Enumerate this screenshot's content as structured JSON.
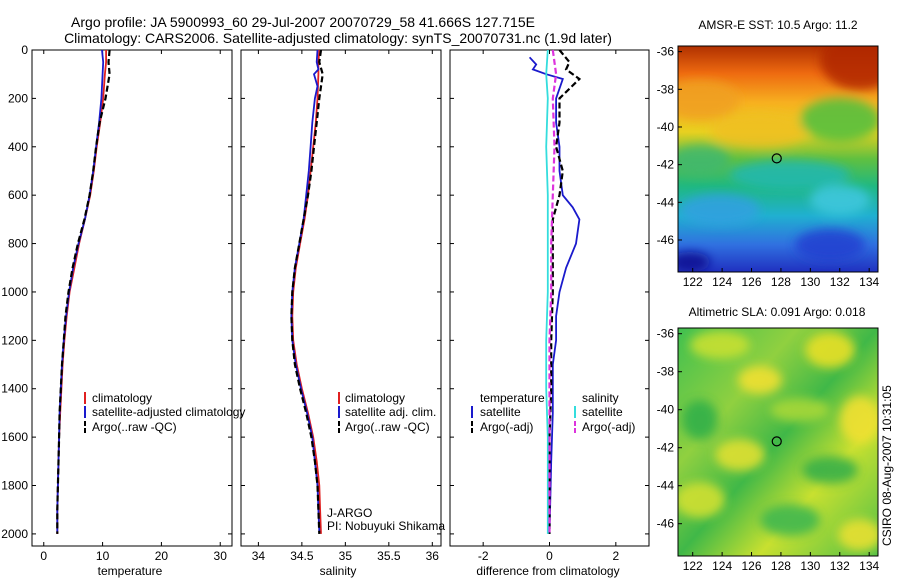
{
  "title_line1": "Argo profile: JA 5900993_60 29-Jul-2007 20070729_58 41.666S 127.715E",
  "title_line2": "Climatology: CARS2006. Satellite-adjusted climatology: synTS_20070731.nc (1.9d later)",
  "side_credit": "CSIRO 08-Aug-2007 10:31:05",
  "colors": {
    "red": "#e02020",
    "blue": "#1a1acc",
    "black": "#000000",
    "cyan": "#33dddd",
    "magenta": "#dd33dd"
  },
  "chart_data": [
    {
      "id": "temperature",
      "type": "line",
      "xlabel": "temperature",
      "xlim": [
        -2,
        32
      ],
      "ylim": [
        0,
        2050
      ],
      "xticks": [
        0,
        10,
        20,
        30
      ],
      "yticks": [
        0,
        200,
        400,
        600,
        800,
        1000,
        1200,
        1400,
        1600,
        1800,
        2000
      ],
      "legend": [
        "climatology",
        "satellite-adjusted climatology",
        "Argo(..raw -QC)"
      ],
      "series": [
        {
          "name": "climatology",
          "color": "red",
          "dash": false,
          "points": [
            [
              10.6,
              0
            ],
            [
              10.6,
              50
            ],
            [
              10.4,
              100
            ],
            [
              10.1,
              200
            ],
            [
              9.6,
              300
            ],
            [
              9.0,
              400
            ],
            [
              8.5,
              500
            ],
            [
              7.9,
              600
            ],
            [
              7.0,
              700
            ],
            [
              6.0,
              800
            ],
            [
              5.2,
              900
            ],
            [
              4.4,
              1000
            ],
            [
              3.9,
              1100
            ],
            [
              3.5,
              1200
            ],
            [
              3.2,
              1300
            ],
            [
              3.0,
              1400
            ],
            [
              2.8,
              1500
            ],
            [
              2.6,
              1600
            ],
            [
              2.5,
              1700
            ],
            [
              2.4,
              1800
            ],
            [
              2.3,
              1900
            ],
            [
              2.3,
              2000
            ]
          ]
        },
        {
          "name": "satellite-adjusted climatology",
          "color": "blue",
          "dash": false,
          "points": [
            [
              9.9,
              0
            ],
            [
              10.1,
              50
            ],
            [
              10.0,
              100
            ],
            [
              9.8,
              200
            ],
            [
              9.4,
              300
            ],
            [
              8.9,
              400
            ],
            [
              8.4,
              500
            ],
            [
              7.8,
              600
            ],
            [
              7.0,
              700
            ],
            [
              5.9,
              800
            ],
            [
              5.0,
              900
            ],
            [
              4.3,
              1000
            ],
            [
              3.8,
              1100
            ],
            [
              3.4,
              1200
            ],
            [
              3.1,
              1300
            ],
            [
              2.9,
              1400
            ],
            [
              2.7,
              1500
            ],
            [
              2.6,
              1600
            ],
            [
              2.5,
              1700
            ],
            [
              2.4,
              1800
            ],
            [
              2.3,
              1900
            ],
            [
              2.3,
              1990
            ]
          ]
        },
        {
          "name": "Argo(..raw -QC)",
          "color": "black",
          "dash": true,
          "points": [
            [
              11.2,
              0
            ],
            [
              11.0,
              50
            ],
            [
              11.2,
              100
            ],
            [
              10.5,
              200
            ],
            [
              9.5,
              300
            ],
            [
              8.9,
              400
            ],
            [
              8.4,
              500
            ],
            [
              7.8,
              600
            ],
            [
              6.9,
              700
            ],
            [
              5.8,
              800
            ],
            [
              4.9,
              900
            ],
            [
              4.2,
              1000
            ],
            [
              3.7,
              1100
            ],
            [
              3.4,
              1200
            ],
            [
              3.1,
              1300
            ],
            [
              2.9,
              1400
            ],
            [
              2.7,
              1500
            ],
            [
              2.6,
              1600
            ],
            [
              2.5,
              1700
            ],
            [
              2.4,
              1800
            ],
            [
              2.3,
              1900
            ],
            [
              2.3,
              2000
            ]
          ]
        }
      ]
    },
    {
      "id": "salinity",
      "type": "line",
      "xlabel": "salinity",
      "xlim": [
        33.8,
        36.1
      ],
      "ylim": [
        0,
        2050
      ],
      "xticks": [
        34,
        34.5,
        35,
        35.5,
        36
      ],
      "yticks": [
        0,
        200,
        400,
        600,
        800,
        1000,
        1200,
        1400,
        1600,
        1800,
        2000
      ],
      "legend": [
        "climatology",
        "satellite adj. clim.",
        "Argo(..raw -QC)"
      ],
      "annotation": [
        "J-ARGO",
        "PI: Nobuyuki Shikama"
      ],
      "series": [
        {
          "name": "climatology",
          "color": "red",
          "dash": false,
          "points": [
            [
              34.7,
              0
            ],
            [
              34.69,
              50
            ],
            [
              34.69,
              100
            ],
            [
              34.68,
              200
            ],
            [
              34.66,
              300
            ],
            [
              34.63,
              400
            ],
            [
              34.6,
              500
            ],
            [
              34.57,
              600
            ],
            [
              34.53,
              700
            ],
            [
              34.48,
              800
            ],
            [
              34.43,
              900
            ],
            [
              34.4,
              1000
            ],
            [
              34.39,
              1100
            ],
            [
              34.4,
              1200
            ],
            [
              34.44,
              1300
            ],
            [
              34.5,
              1400
            ],
            [
              34.57,
              1500
            ],
            [
              34.63,
              1600
            ],
            [
              34.67,
              1700
            ],
            [
              34.7,
              1800
            ],
            [
              34.71,
              1900
            ],
            [
              34.72,
              2000
            ]
          ]
        },
        {
          "name": "satellite adj. clim.",
          "color": "blue",
          "dash": false,
          "points": [
            [
              34.68,
              0
            ],
            [
              34.67,
              50
            ],
            [
              34.69,
              80
            ],
            [
              34.64,
              100
            ],
            [
              34.68,
              150
            ],
            [
              34.65,
              200
            ],
            [
              34.62,
              300
            ],
            [
              34.6,
              400
            ],
            [
              34.58,
              500
            ],
            [
              34.55,
              600
            ],
            [
              34.52,
              700
            ],
            [
              34.47,
              800
            ],
            [
              34.42,
              900
            ],
            [
              34.39,
              1000
            ],
            [
              34.38,
              1100
            ],
            [
              34.39,
              1200
            ],
            [
              34.43,
              1300
            ],
            [
              34.49,
              1400
            ],
            [
              34.56,
              1500
            ],
            [
              34.62,
              1600
            ],
            [
              34.65,
              1700
            ],
            [
              34.68,
              1800
            ],
            [
              34.69,
              1900
            ],
            [
              34.7,
              1990
            ]
          ]
        },
        {
          "name": "Argo(..raw -QC)",
          "color": "black",
          "dash": true,
          "points": [
            [
              34.72,
              0
            ],
            [
              34.7,
              50
            ],
            [
              34.74,
              100
            ],
            [
              34.72,
              150
            ],
            [
              34.7,
              200
            ],
            [
              34.67,
              300
            ],
            [
              34.64,
              400
            ],
            [
              34.61,
              500
            ],
            [
              34.57,
              600
            ],
            [
              34.52,
              700
            ],
            [
              34.47,
              800
            ],
            [
              34.42,
              900
            ],
            [
              34.39,
              1000
            ],
            [
              34.38,
              1100
            ],
            [
              34.39,
              1200
            ],
            [
              34.42,
              1300
            ],
            [
              34.48,
              1400
            ],
            [
              34.55,
              1500
            ],
            [
              34.61,
              1600
            ],
            [
              34.65,
              1700
            ],
            [
              34.68,
              1800
            ],
            [
              34.69,
              1900
            ],
            [
              34.7,
              2000
            ]
          ]
        }
      ]
    },
    {
      "id": "difference",
      "type": "line",
      "xlabel": "difference from climatology",
      "xlim": [
        -3,
        3
      ],
      "ylim": [
        0,
        2050
      ],
      "xticks": [
        -2,
        0,
        2
      ],
      "yticks": [
        0,
        200,
        400,
        600,
        800,
        1000,
        1200,
        1400,
        1600,
        1800,
        2000
      ],
      "legend_groups": [
        {
          "title": "temperature",
          "items": [
            "satellite",
            "Argo(-adj)"
          ]
        },
        {
          "title": "salinity",
          "items": [
            "satellite",
            "Argo(-adj)"
          ]
        }
      ],
      "series": [
        {
          "name": "satellite",
          "group": "temperature",
          "color": "blue",
          "dash": false,
          "points": [
            [
              -0.6,
              30
            ],
            [
              -0.4,
              60
            ],
            [
              -0.5,
              80
            ],
            [
              -0.1,
              100
            ],
            [
              0.4,
              120
            ],
            [
              0.2,
              200
            ],
            [
              0.2,
              300
            ],
            [
              0.3,
              400
            ],
            [
              0.3,
              500
            ],
            [
              0.4,
              600
            ],
            [
              0.7,
              650
            ],
            [
              0.9,
              700
            ],
            [
              0.8,
              800
            ],
            [
              0.5,
              900
            ],
            [
              0.3,
              1000
            ],
            [
              0.2,
              1100
            ],
            [
              0.2,
              1200
            ],
            [
              0.1,
              1300
            ],
            [
              0.1,
              1400
            ],
            [
              0.1,
              1500
            ],
            [
              0.05,
              1700
            ],
            [
              0.0,
              2000
            ]
          ]
        },
        {
          "name": "Argo(-adj)",
          "group": "temperature",
          "color": "black",
          "dash": true,
          "points": [
            [
              0.3,
              0
            ],
            [
              0.6,
              50
            ],
            [
              0.5,
              80
            ],
            [
              0.9,
              120
            ],
            [
              0.3,
              200
            ],
            [
              0.3,
              300
            ],
            [
              0.2,
              400
            ],
            [
              0.4,
              500
            ],
            [
              0.3,
              600
            ],
            [
              0.1,
              700
            ],
            [
              0.1,
              800
            ],
            [
              0.1,
              900
            ],
            [
              0.1,
              1000
            ],
            [
              0.05,
              1200
            ],
            [
              0.05,
              1400
            ],
            [
              0.0,
              1600
            ],
            [
              0.0,
              2000
            ]
          ]
        },
        {
          "name": "satellite",
          "group": "salinity",
          "color": "cyan",
          "dash": false,
          "points": [
            [
              -0.05,
              0
            ],
            [
              -0.1,
              100
            ],
            [
              -0.05,
              200
            ],
            [
              -0.1,
              400
            ],
            [
              -0.05,
              600
            ],
            [
              -0.05,
              800
            ],
            [
              -0.05,
              1000
            ],
            [
              -0.1,
              1200
            ],
            [
              -0.1,
              1400
            ],
            [
              -0.05,
              1600
            ],
            [
              -0.05,
              1800
            ],
            [
              -0.05,
              2000
            ]
          ]
        },
        {
          "name": "Argo(-adj)",
          "group": "salinity",
          "color": "magenta",
          "dash": true,
          "points": [
            [
              0.1,
              0
            ],
            [
              0.2,
              100
            ],
            [
              0.1,
              200
            ],
            [
              0.15,
              400
            ],
            [
              0.1,
              600
            ],
            [
              0.05,
              800
            ],
            [
              0.05,
              1000
            ],
            [
              0.0,
              1200
            ],
            [
              0.0,
              1400
            ],
            [
              0.0,
              1600
            ],
            [
              0.0,
              1800
            ],
            [
              0.0,
              2000
            ]
          ]
        }
      ]
    },
    {
      "id": "sst_map",
      "type": "heatmap",
      "title": "AMSR-E SST: 10.5  Argo: 11.2",
      "xlim": [
        121,
        134.6
      ],
      "ylim": [
        -47.7,
        -35.7
      ],
      "xticks": [
        122,
        124,
        126,
        128,
        130,
        132,
        134
      ],
      "yticks": [
        -36,
        -38,
        -40,
        -42,
        -44,
        -46
      ],
      "marker": {
        "lon": 127.715,
        "lat": -41.666
      }
    },
    {
      "id": "sla_map",
      "type": "heatmap",
      "title": "Altimetric SLA: 0.091  Argo: 0.018",
      "xlim": [
        121,
        134.6
      ],
      "ylim": [
        -47.7,
        -35.7
      ],
      "xticks": [
        122,
        124,
        126,
        128,
        130,
        132,
        134
      ],
      "yticks": [
        -36,
        -38,
        -40,
        -42,
        -44,
        -46
      ],
      "marker": {
        "lon": 127.715,
        "lat": -41.666
      }
    }
  ]
}
